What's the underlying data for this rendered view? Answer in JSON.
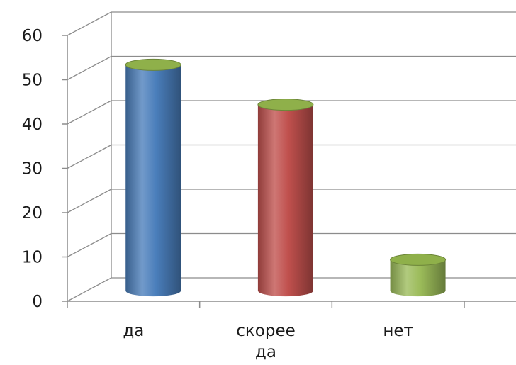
{
  "chart_data": {
    "type": "bar",
    "style": "3d-cylinder",
    "categories": [
      [
        "да"
      ],
      [
        "скорее",
        "да"
      ],
      [
        "нет"
      ]
    ],
    "values": [
      51,
      42,
      7
    ],
    "colors": [
      "#4a7ebb",
      "#c0504d",
      "#9bbb59"
    ],
    "top_color": "#8fb04a",
    "ylim": [
      0,
      60
    ],
    "yticks": [
      "0",
      "10",
      "20",
      "30",
      "40",
      "50",
      "60"
    ],
    "grid": true,
    "legend": "none",
    "title": "",
    "xlabel": "",
    "ylabel": ""
  }
}
